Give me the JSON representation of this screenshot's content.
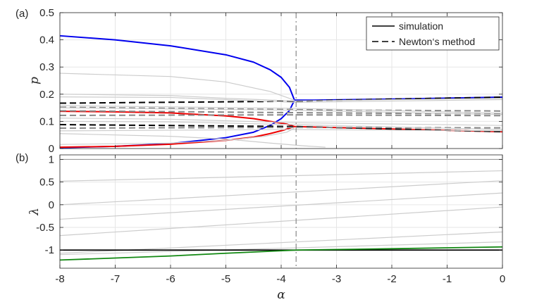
{
  "chart_data": [
    {
      "panel": "(a)",
      "type": "line",
      "ylabel": "p",
      "xlim": [
        -8,
        0
      ],
      "ylim": [
        0,
        0.5
      ],
      "yticks": [
        "0",
        "0.1",
        "0.2",
        "0.3",
        "0.4",
        "0.5"
      ],
      "grid": true,
      "legend": {
        "placement": "top-right",
        "entries": [
          {
            "label": "simulation",
            "style": "solid"
          },
          {
            "label": "Newton‘s method",
            "style": "dashed"
          }
        ]
      },
      "series": [
        {
          "color": "#0000ee",
          "style": "solid",
          "width": 2,
          "points": [
            [
              -8,
              0.415
            ],
            [
              -7,
              0.4
            ],
            [
              -6,
              0.378
            ],
            [
              -5,
              0.345
            ],
            [
              -4.5,
              0.318
            ],
            [
              -4.2,
              0.29
            ],
            [
              -4.0,
              0.262
            ],
            [
              -3.85,
              0.225
            ],
            [
              -3.76,
              0.178
            ],
            [
              -3.4,
              0.178
            ],
            [
              -2,
              0.182
            ],
            [
              0,
              0.189
            ]
          ]
        },
        {
          "color": "#0000ee",
          "style": "solid",
          "width": 2,
          "points": [
            [
              -8,
              0.003
            ],
            [
              -7,
              0.008
            ],
            [
              -6,
              0.018
            ],
            [
              -5,
              0.04
            ],
            [
              -4.5,
              0.06
            ],
            [
              -4.2,
              0.085
            ],
            [
              -4.0,
              0.11
            ],
            [
              -3.85,
              0.14
            ],
            [
              -3.76,
              0.178
            ]
          ]
        },
        {
          "color": "#ee0000",
          "style": "solid",
          "width": 2,
          "points": [
            [
              -8,
              0.137
            ],
            [
              -7,
              0.135
            ],
            [
              -6,
              0.131
            ],
            [
              -5,
              0.12
            ],
            [
              -4.5,
              0.11
            ],
            [
              -4.2,
              0.1
            ],
            [
              -3.9,
              0.09
            ],
            [
              -3.76,
              0.081
            ],
            [
              -3,
              0.077
            ],
            [
              -2,
              0.072
            ],
            [
              0,
              0.062
            ]
          ]
        },
        {
          "color": "#ee0000",
          "style": "solid",
          "width": 2,
          "points": [
            [
              -8,
              0.005
            ],
            [
              -7,
              0.008
            ],
            [
              -6,
              0.016
            ],
            [
              -5,
              0.03
            ],
            [
              -4.5,
              0.042
            ],
            [
              -4.2,
              0.055
            ],
            [
              -3.95,
              0.068
            ],
            [
              -3.76,
              0.081
            ]
          ]
        },
        {
          "color": "#000000",
          "style": "dashed",
          "width": 2,
          "points": [
            [
              -8,
              0.167
            ],
            [
              -3.76,
              0.174
            ],
            [
              -3,
              0.178
            ],
            [
              -2,
              0.182
            ],
            [
              0,
              0.189
            ]
          ]
        },
        {
          "color": "#000000",
          "style": "dashed",
          "width": 2,
          "points": [
            [
              -8,
              0.088
            ],
            [
              -3.76,
              0.081
            ],
            [
              -3,
              0.077
            ],
            [
              -2,
              0.072
            ],
            [
              0,
              0.062
            ]
          ]
        },
        {
          "color": "#888888",
          "style": "dashed",
          "width": 2,
          "points": [
            [
              -8,
              0.152
            ],
            [
              -3.76,
              0.143
            ],
            [
              0,
              0.138
            ]
          ]
        },
        {
          "color": "#888888",
          "style": "dashed",
          "width": 2,
          "points": [
            [
              -8,
              0.139
            ],
            [
              -3.76,
              0.132
            ],
            [
              0,
              0.127
            ]
          ]
        },
        {
          "color": "#888888",
          "style": "dashed",
          "width": 2,
          "points": [
            [
              -8,
              0.122
            ],
            [
              -3.76,
              0.124
            ],
            [
              0,
              0.121
            ]
          ]
        },
        {
          "color": "#888888",
          "style": "dashed",
          "width": 2,
          "points": [
            [
              -8,
              0.075
            ],
            [
              -3.76,
              0.078
            ],
            [
              0,
              0.076
            ]
          ]
        },
        {
          "color": "#cccccc",
          "style": "solid",
          "width": 1.2,
          "points": [
            [
              -8,
              0.277
            ],
            [
              -6,
              0.265
            ],
            [
              -5,
              0.245
            ],
            [
              -4.2,
              0.21
            ],
            [
              -3.76,
              0.178
            ]
          ]
        },
        {
          "color": "#cccccc",
          "style": "solid",
          "width": 1.2,
          "points": [
            [
              -8,
              0.2
            ],
            [
              -6,
              0.195
            ],
            [
              -5,
              0.185
            ],
            [
              -3.76,
              0.175
            ],
            [
              0,
              0.185
            ]
          ]
        },
        {
          "color": "#cccccc",
          "style": "solid",
          "width": 1.2,
          "points": [
            [
              -8,
              0.19
            ],
            [
              -6,
              0.188
            ],
            [
              -5,
              0.18
            ],
            [
              -3.76,
              0.17
            ],
            [
              0,
              0.18
            ]
          ]
        },
        {
          "color": "#cccccc",
          "style": "solid",
          "width": 1.2,
          "points": [
            [
              -8,
              0.158
            ],
            [
              -3.76,
              0.148
            ],
            [
              0,
              0.13
            ]
          ]
        },
        {
          "color": "#cccccc",
          "style": "solid",
          "width": 1.2,
          "points": [
            [
              -8,
              0.15
            ],
            [
              -3.76,
              0.141
            ],
            [
              0,
              0.125
            ]
          ]
        },
        {
          "color": "#cccccc",
          "style": "solid",
          "width": 1.2,
          "points": [
            [
              -8,
              0.112
            ],
            [
              -6,
              0.108
            ],
            [
              -3.76,
              0.095
            ],
            [
              0,
              0.085
            ]
          ]
        },
        {
          "color": "#cccccc",
          "style": "solid",
          "width": 1.2,
          "points": [
            [
              -8,
              0.1
            ],
            [
              -6,
              0.098
            ],
            [
              -3.76,
              0.088
            ],
            [
              0,
              0.07
            ]
          ]
        },
        {
          "color": "#cccccc",
          "style": "solid",
          "width": 1.2,
          "points": [
            [
              -8,
              0.065
            ],
            [
              -3.76,
              0.07
            ],
            [
              0,
              0.065
            ]
          ]
        },
        {
          "color": "#cccccc",
          "style": "solid",
          "width": 1.2,
          "points": [
            [
              -8,
              0.055
            ],
            [
              -6,
              0.045
            ],
            [
              -5,
              0.035
            ],
            [
              -4.2,
              0.02
            ],
            [
              -3.6,
              0.01
            ],
            [
              -3.2,
              0.005
            ]
          ]
        },
        {
          "color": "#cccccc",
          "style": "solid",
          "width": 1.2,
          "points": [
            [
              -8,
              0.015
            ],
            [
              -6,
              0.02
            ],
            [
              -5,
              0.03
            ],
            [
              -4.3,
              0.045
            ],
            [
              -3.9,
              0.06
            ],
            [
              -3.76,
              0.075
            ]
          ]
        }
      ],
      "vline": {
        "x": -3.73,
        "style": "dash-dot",
        "color": "#888888"
      }
    },
    {
      "panel": "(b)",
      "type": "line",
      "ylabel": "λ",
      "xlabel": "α",
      "xlim": [
        -8,
        0
      ],
      "ylim": [
        -1.4,
        1.1
      ],
      "xticks": [
        "-8",
        "-7",
        "-6",
        "-5",
        "-4",
        "-3",
        "-2",
        "-1",
        "0"
      ],
      "yticks": [
        "-1",
        "-0.5",
        "0",
        "0.5",
        "1"
      ],
      "grid": true,
      "series": [
        {
          "color": "#999999",
          "style": "solid",
          "width": 1.2,
          "points": [
            [
              -8,
              1.0
            ],
            [
              0,
              1.0
            ]
          ]
        },
        {
          "color": "#cccccc",
          "style": "solid",
          "width": 1.2,
          "points": [
            [
              -8,
              0.52
            ],
            [
              0,
              0.75
            ]
          ]
        },
        {
          "color": "#cccccc",
          "style": "solid",
          "width": 1.2,
          "points": [
            [
              -8,
              0.0
            ],
            [
              0,
              0.53
            ]
          ]
        },
        {
          "color": "#cccccc",
          "style": "solid",
          "width": 1.2,
          "points": [
            [
              -8,
              -0.32
            ],
            [
              0,
              0.26
            ]
          ]
        },
        {
          "color": "#cccccc",
          "style": "solid",
          "width": 1.2,
          "points": [
            [
              -8,
              -0.68
            ],
            [
              0,
              -0.05
            ]
          ]
        },
        {
          "color": "#cccccc",
          "style": "solid",
          "width": 1.2,
          "points": [
            [
              -8,
              -1.07
            ],
            [
              0,
              -0.6
            ]
          ]
        },
        {
          "color": "#cccccc",
          "style": "solid",
          "width": 1.2,
          "points": [
            [
              -8,
              -1.1
            ],
            [
              0,
              -0.82
            ]
          ]
        },
        {
          "color": "#000000",
          "style": "solid",
          "width": 1.8,
          "points": [
            [
              -8,
              -1.0
            ],
            [
              0,
              -1.0
            ]
          ]
        },
        {
          "color": "#118811",
          "style": "solid",
          "width": 1.8,
          "points": [
            [
              -8,
              -1.22
            ],
            [
              -6,
              -1.13
            ],
            [
              -5,
              -1.07
            ],
            [
              -3.73,
              -1.0
            ],
            [
              -2,
              -0.97
            ],
            [
              0,
              -0.93
            ]
          ]
        }
      ],
      "vline": {
        "x": -3.73,
        "style": "dash-dot",
        "color": "#888888"
      }
    }
  ]
}
